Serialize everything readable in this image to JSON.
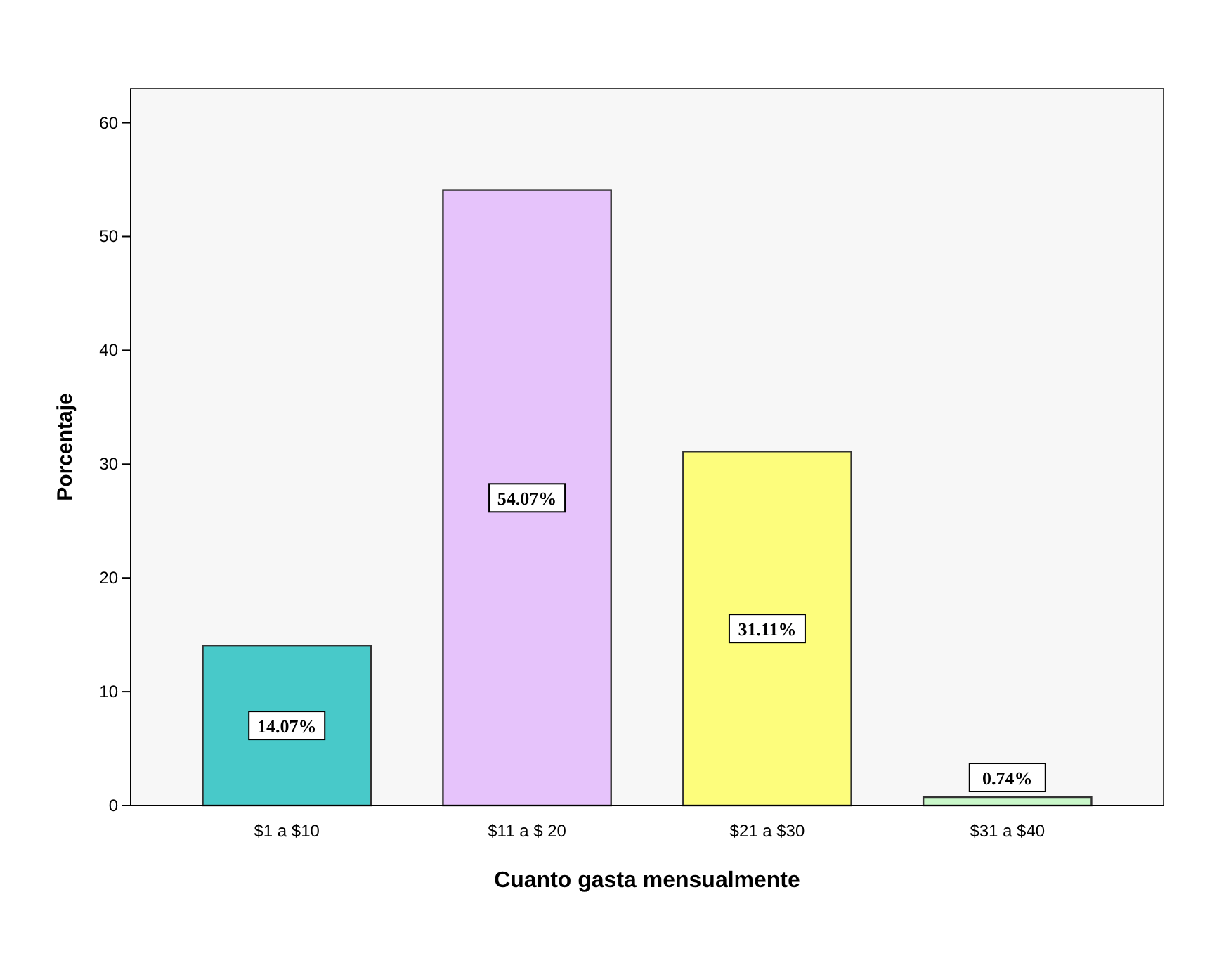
{
  "chart_data": {
    "type": "bar",
    "xlabel": "Cuanto gasta mensualmente",
    "ylabel": "Porcentaje",
    "categories": [
      "$1 a $10",
      "$11 a $ 20",
      "$21 a $30",
      "$31 a $40"
    ],
    "values": [
      14.07,
      54.07,
      31.11,
      0.74
    ],
    "colors": [
      "#48c9c9",
      "#e6c3fb",
      "#fdfd7c",
      "#c9f7c9"
    ],
    "value_labels": [
      "14.07%",
      "54.07%",
      "31.11%",
      "0.74%"
    ],
    "ylim": [
      0,
      63
    ],
    "yticks": [
      0,
      10,
      20,
      30,
      40,
      50,
      60
    ],
    "grid": false
  }
}
